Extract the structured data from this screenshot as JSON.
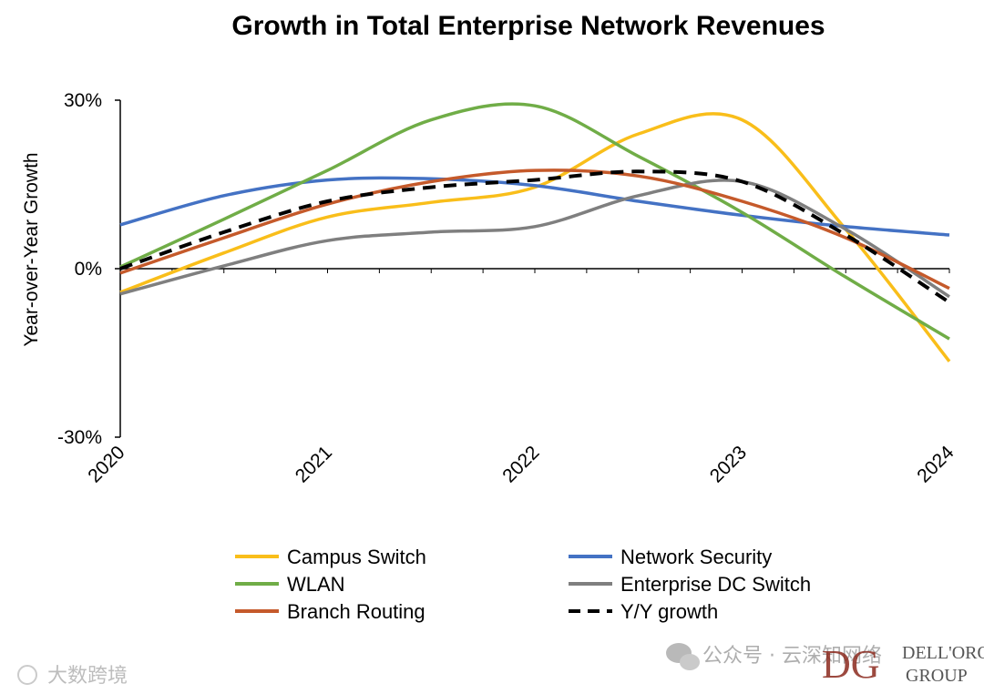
{
  "chart_data": {
    "type": "line",
    "title": "Growth in Total Enterprise Network Revenues",
    "xlabel": "",
    "ylabel": "Year-over-Year Growth",
    "x": [
      2020,
      2020.5,
      2021,
      2021.5,
      2022,
      2022.5,
      2023,
      2023.5,
      2024
    ],
    "x_tick_labels": [
      "2020",
      "2021",
      "2022",
      "2023",
      "2024"
    ],
    "x_ticks": [
      2020,
      2021,
      2022,
      2023,
      2024
    ],
    "y_tick_labels": [
      "30%",
      "0%",
      "-30%"
    ],
    "y_ticks": [
      30,
      0,
      -30
    ],
    "ylim": [
      -30,
      30
    ],
    "xlim": [
      2020,
      2024
    ],
    "grid": false,
    "legend": "bottom",
    "series": [
      {
        "name": "Campus Switch",
        "color": "#F9BE1A",
        "dash": "solid",
        "values": [
          -4.2,
          2.8,
          9.2,
          11.8,
          14.5,
          24.0,
          26.5,
          7.0,
          -16.5
        ]
      },
      {
        "name": "Network Security",
        "color": "#4472C4",
        "dash": "solid",
        "values": [
          7.8,
          13.0,
          15.8,
          16.0,
          14.8,
          12.0,
          9.5,
          7.5,
          6.0
        ]
      },
      {
        "name": "WLAN",
        "color": "#70AD47",
        "dash": "solid",
        "values": [
          0.3,
          8.8,
          17.5,
          26.5,
          29.0,
          20.0,
          10.0,
          -1.5,
          -12.5
        ]
      },
      {
        "name": "Enterprise DC Switch",
        "color": "#7F7F7F",
        "dash": "solid",
        "values": [
          -4.5,
          0.5,
          5.0,
          6.5,
          7.5,
          13.0,
          15.5,
          7.0,
          -5.0
        ]
      },
      {
        "name": "Branch Routing",
        "color": "#C55A2B",
        "dash": "solid",
        "values": [
          -0.8,
          5.5,
          11.5,
          15.5,
          17.5,
          16.5,
          12.0,
          5.5,
          -3.5
        ]
      },
      {
        "name": "Y/Y growth",
        "color": "#000000",
        "dash": "dashed",
        "values": [
          0.0,
          6.5,
          12.0,
          14.5,
          15.8,
          17.3,
          15.5,
          6.0,
          -6.0
        ]
      }
    ]
  },
  "watermark": {
    "left_text": "大数跨境",
    "wechat_text": "公众号 · 云深知网络",
    "logo_line1": "DELL'ORO",
    "logo_line2": "GROUP",
    "logo_mark": "DG"
  }
}
